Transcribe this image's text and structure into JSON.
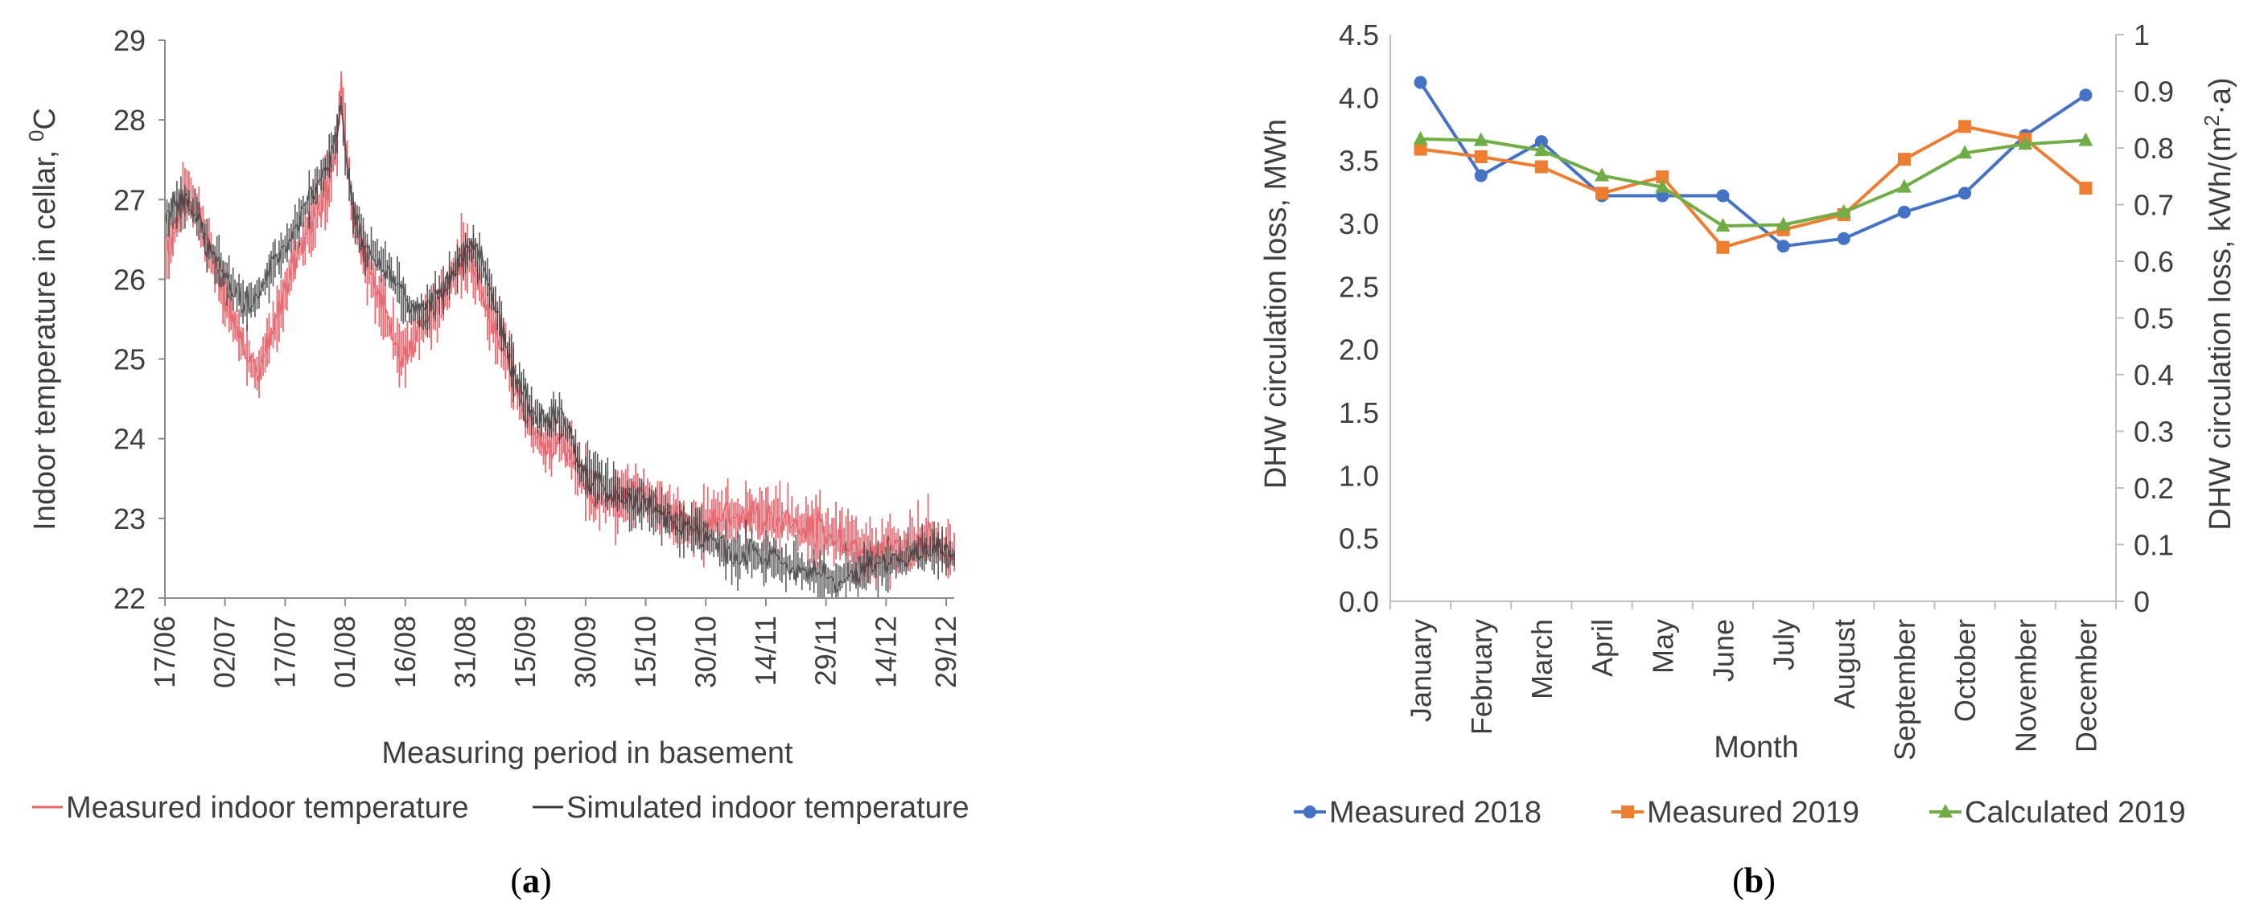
{
  "chart_data": [
    {
      "panel": "a",
      "panel_label": "a",
      "type": "line",
      "title": "",
      "xlabel": "Measuring period in basement",
      "ylabel": "Indoor temperature in cellar, ",
      "ylabel_unit_sup": "0",
      "ylabel_unit": "C",
      "ylim": [
        22,
        29
      ],
      "yticks": [
        22,
        23,
        24,
        25,
        26,
        27,
        28,
        29
      ],
      "x_tick_labels": [
        "17/06",
        "02/07",
        "17/07",
        "01/08",
        "16/08",
        "31/08",
        "15/09",
        "30/09",
        "15/10",
        "30/10",
        "14/11",
        "29/11",
        "14/12",
        "29/12"
      ],
      "x_day_range": [
        0,
        197
      ],
      "x_tick_days": [
        0,
        15,
        30,
        45,
        60,
        75,
        90,
        105,
        120,
        135,
        150,
        165,
        180,
        195
      ],
      "x_ticks_minor_days": [
        0,
        15,
        30,
        45,
        60,
        75,
        90,
        105,
        120,
        135,
        150,
        165,
        180,
        195
      ],
      "series": [
        {
          "name": "Measured indoor temperature",
          "color": "#e8636b",
          "days": [
            0,
            2,
            5,
            8,
            11,
            14,
            17,
            20,
            23,
            26,
            29,
            32,
            35,
            38,
            41,
            43,
            44,
            45,
            47,
            50,
            53,
            56,
            59,
            62,
            65,
            68,
            71,
            74,
            77,
            80,
            83,
            86,
            89,
            92,
            95,
            98,
            101,
            104,
            107,
            110,
            113,
            116,
            119,
            122,
            125,
            128,
            131,
            134,
            137,
            140,
            143,
            146,
            149,
            152,
            155,
            158,
            161,
            164,
            167,
            170,
            173,
            176,
            179,
            182,
            185,
            188,
            191,
            194,
            197
          ],
          "values": [
            26.3,
            26.5,
            27.1,
            26.9,
            26.4,
            25.9,
            25.5,
            25.1,
            24.8,
            25.2,
            25.7,
            26.2,
            26.5,
            26.9,
            27.2,
            27.7,
            28.5,
            27.9,
            26.8,
            26.2,
            25.8,
            25.4,
            25.0,
            25.2,
            25.5,
            25.6,
            25.9,
            26.3,
            26.2,
            25.7,
            25.3,
            24.9,
            24.4,
            24.1,
            23.9,
            24.0,
            23.9,
            23.5,
            23.3,
            23.2,
            23.2,
            23.3,
            23.3,
            23.2,
            23.1,
            23.0,
            22.9,
            22.9,
            23.0,
            23.0,
            23.0,
            23.1,
            23.0,
            23.0,
            23.0,
            22.9,
            22.9,
            22.8,
            22.8,
            22.7,
            22.6,
            22.5,
            22.6,
            22.6,
            22.6,
            22.7,
            22.8,
            22.6,
            22.6
          ],
          "spread": 0.45
        },
        {
          "name": "Simulated indoor temperature",
          "color": "#3c3c3c",
          "days": [
            0,
            2,
            5,
            8,
            11,
            14,
            17,
            20,
            23,
            26,
            29,
            32,
            35,
            38,
            41,
            43,
            44,
            45,
            47,
            50,
            53,
            56,
            59,
            62,
            65,
            68,
            71,
            74,
            77,
            80,
            83,
            86,
            89,
            92,
            95,
            98,
            101,
            104,
            107,
            110,
            113,
            116,
            119,
            122,
            125,
            128,
            131,
            134,
            137,
            140,
            143,
            146,
            149,
            152,
            155,
            158,
            161,
            164,
            167,
            170,
            173,
            176,
            179,
            182,
            185,
            188,
            191,
            194,
            197
          ],
          "values": [
            26.6,
            26.9,
            27.0,
            26.8,
            26.4,
            26.1,
            25.9,
            25.7,
            25.8,
            26.1,
            26.3,
            26.6,
            26.9,
            27.2,
            27.5,
            27.9,
            28.2,
            27.5,
            26.9,
            26.4,
            26.3,
            26.1,
            25.8,
            25.6,
            25.6,
            25.8,
            26.0,
            26.3,
            26.4,
            26.1,
            25.6,
            25.0,
            24.6,
            24.3,
            24.2,
            24.3,
            24.1,
            23.6,
            23.5,
            23.4,
            23.3,
            23.2,
            23.2,
            23.1,
            23.0,
            22.9,
            22.9,
            22.8,
            22.7,
            22.6,
            22.5,
            22.6,
            22.5,
            22.5,
            22.4,
            22.4,
            22.3,
            22.3,
            22.2,
            22.3,
            22.3,
            22.4,
            22.4,
            22.5,
            22.5,
            22.6,
            22.6,
            22.6,
            22.5
          ],
          "spread": 0.35
        }
      ],
      "legend": [
        "Measured indoor temperature",
        "Simulated indoor temperature"
      ],
      "legend_position": "bottom"
    },
    {
      "panel": "b",
      "panel_label": "b",
      "type": "line",
      "title": "",
      "xlabel": "Month",
      "ylabel": "DHW circulation loss, MWh",
      "ylim": [
        0.0,
        4.5
      ],
      "yticks": [
        "0.0",
        "0.5",
        "1.0",
        "1.5",
        "2.0",
        "2.5",
        "3.0",
        "3.5",
        "4.0",
        "4.5"
      ],
      "y2label": "DHW circulation loss, kWh/(m",
      "y2label_sup": "2",
      "y2label_end": "·a)",
      "y2lim": [
        0,
        1.0
      ],
      "y2ticks": [
        "0",
        "0.1",
        "0.2",
        "0.3",
        "0.4",
        "0.5",
        "0.6",
        "0.7",
        "0.8",
        "0.9",
        "1"
      ],
      "categories": [
        "January",
        "February",
        "March",
        "April",
        "May",
        "June",
        "July",
        "August",
        "September",
        "October",
        "November",
        "December"
      ],
      "series": [
        {
          "name": "Measured 2018",
          "color": "#4472c4",
          "marker": "circle",
          "values": [
            4.12,
            3.38,
            3.65,
            3.22,
            3.22,
            3.22,
            2.82,
            2.88,
            3.09,
            3.24,
            3.7,
            4.02
          ]
        },
        {
          "name": "Measured 2019",
          "color": "#ed7d31",
          "marker": "square",
          "values": [
            3.59,
            3.53,
            3.45,
            3.24,
            3.37,
            2.81,
            2.95,
            3.07,
            3.51,
            3.77,
            3.67,
            3.28
          ]
        },
        {
          "name": "Calculated 2019",
          "color": "#70ad47",
          "marker": "triangle",
          "values": [
            3.67,
            3.66,
            3.58,
            3.38,
            3.29,
            2.98,
            2.99,
            3.09,
            3.29,
            3.56,
            3.63,
            3.66
          ]
        }
      ],
      "legend": [
        "Measured 2018",
        "Measured 2019",
        "Calculated 2019"
      ],
      "legend_position": "bottom"
    }
  ]
}
